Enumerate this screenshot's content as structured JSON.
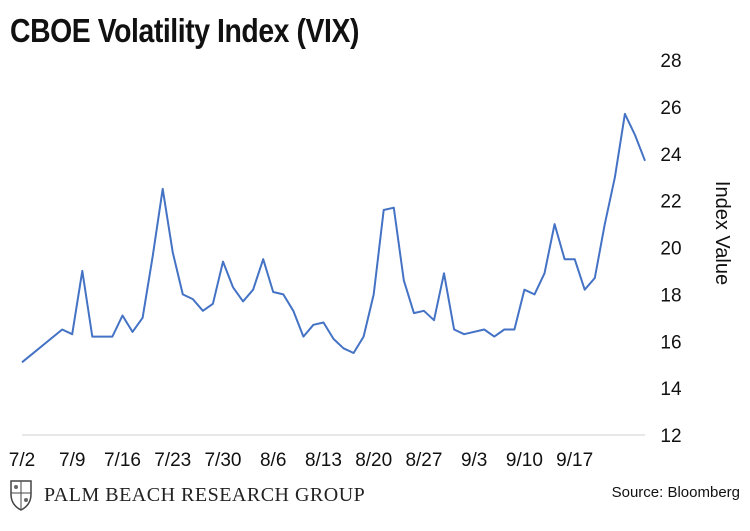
{
  "chart_data": {
    "type": "line",
    "title": "CBOE Volatility Index (VIX)",
    "xlabel": "",
    "ylabel": "Index Value",
    "ylim": [
      12,
      28
    ],
    "yticks": [
      12,
      14,
      16,
      18,
      20,
      22,
      24,
      26,
      28
    ],
    "y_axis_side": "right",
    "grid": false,
    "line_color": "#4472C4",
    "x_tick_labels": [
      "7/2",
      "7/9",
      "7/16",
      "7/23",
      "7/30",
      "8/6",
      "8/13",
      "8/20",
      "8/27",
      "9/3",
      "9/10",
      "9/17"
    ],
    "x": [
      "7/2",
      "7/6",
      "7/9",
      "7/10",
      "7/11",
      "7/12",
      "7/13",
      "7/16",
      "7/17",
      "7/18",
      "7/19",
      "7/20",
      "7/23",
      "7/24",
      "7/25",
      "7/26",
      "7/27",
      "7/30",
      "7/31",
      "8/1",
      "8/2",
      "8/3",
      "8/6",
      "8/7",
      "8/8",
      "8/9",
      "8/10",
      "8/13",
      "8/14",
      "8/15",
      "8/16",
      "8/17",
      "8/20",
      "8/21",
      "8/22",
      "8/23",
      "8/24",
      "8/27",
      "8/28",
      "8/29",
      "8/30",
      "8/31",
      "9/4",
      "9/5",
      "9/6",
      "9/7",
      "9/10",
      "9/11",
      "9/12",
      "9/13",
      "9/14",
      "9/17",
      "9/18",
      "9/19",
      "9/20",
      "9/21",
      "9/24",
      "9/25",
      "9/26"
    ],
    "series": [
      {
        "values": [
          15.1,
          16.5,
          16.3,
          19.0,
          16.2,
          16.2,
          16.2,
          17.1,
          16.4,
          17.0,
          19.6,
          22.5,
          19.8,
          18.0,
          17.8,
          17.3,
          17.6,
          19.4,
          18.3,
          17.7,
          18.2,
          19.5,
          18.1,
          18.0,
          17.3,
          16.2,
          16.7,
          16.8,
          16.1,
          15.7,
          15.5,
          16.2,
          18.0,
          21.6,
          21.7,
          18.6,
          17.2,
          17.3,
          16.9,
          18.9,
          16.5,
          16.3,
          16.5,
          16.2,
          16.5,
          16.5,
          18.2,
          18.0,
          18.9,
          21.0,
          19.5,
          19.5,
          18.2,
          18.7,
          21.0,
          23.0,
          25.7,
          24.8,
          23.7
        ]
      }
    ]
  },
  "footer": {
    "brand": "PALM BEACH RESEARCH GROUP",
    "source": "Source: Bloomberg"
  }
}
